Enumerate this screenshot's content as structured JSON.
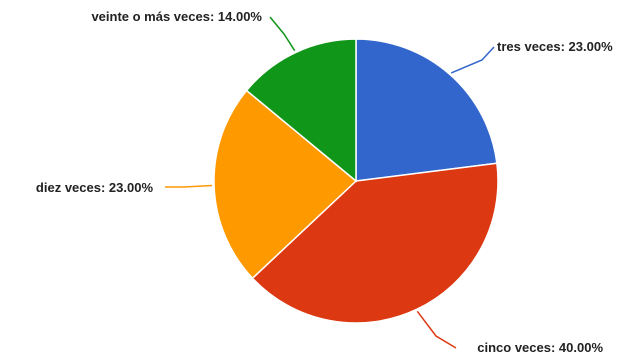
{
  "chart_data": {
    "type": "pie",
    "slices": [
      {
        "label": "tres veces",
        "value": 23.0,
        "display": "tres veces: 23.00%",
        "color": "#3366cc"
      },
      {
        "label": "cinco veces",
        "value": 40.0,
        "display": "cinco veces: 40.00%",
        "color": "#dc3912"
      },
      {
        "label": "diez veces",
        "value": 23.0,
        "display": "diez veces: 23.00%",
        "color": "#ff9900"
      },
      {
        "label": "veinte o más veces",
        "value": 14.0,
        "display": "veinte o más veces: 14.00%",
        "color": "#109618"
      }
    ],
    "start": "12 o'clock",
    "direction": "clockwise",
    "legend": "none"
  }
}
